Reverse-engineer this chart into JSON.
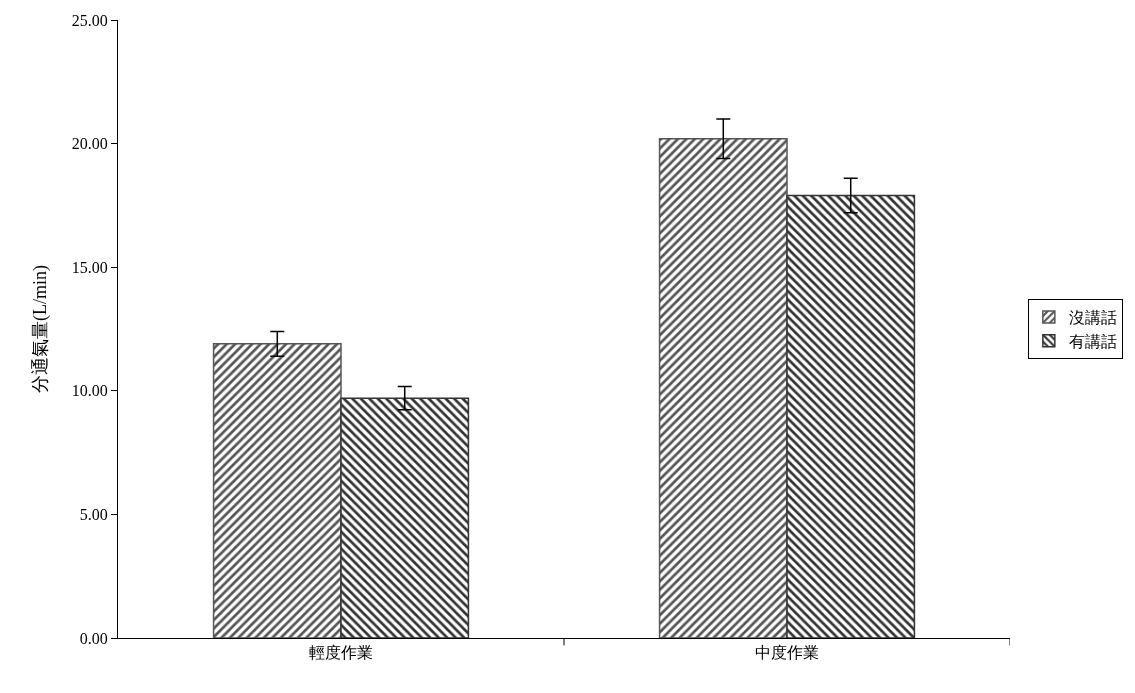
{
  "chart_data": {
    "type": "bar",
    "ylabel": "分通氣量(L/min)",
    "categories": [
      "輕度作業",
      "中度作業"
    ],
    "series": [
      {
        "name": "沒講話",
        "color": "#555555",
        "values": [
          11.9,
          20.2
        ],
        "errors": [
          0.5,
          0.8
        ]
      },
      {
        "name": "有講話",
        "color": "#333333",
        "values": [
          9.7,
          17.9
        ],
        "errors": [
          0.47,
          0.7
        ]
      }
    ],
    "ylim": [
      0,
      25
    ],
    "yticks": [
      {
        "value": 0,
        "label": "0.00"
      },
      {
        "value": 5,
        "label": "5.00"
      },
      {
        "value": 10,
        "label": "10.00"
      },
      {
        "value": 15,
        "label": "15.00"
      },
      {
        "value": 20,
        "label": "20.00"
      },
      {
        "value": 25,
        "label": "25.00"
      }
    ],
    "grid": false,
    "legend": "right"
  }
}
